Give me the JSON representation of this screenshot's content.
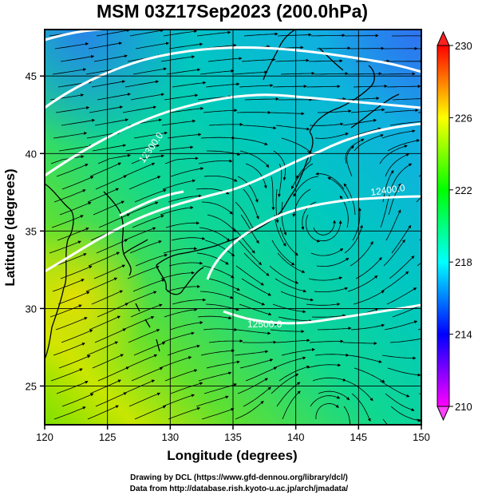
{
  "title": "MSM 03Z17Sep2023 (200.0hPa)",
  "xlabel": "Longitude (degrees)",
  "ylabel": "Latitude  (degrees)",
  "x_ticks": [
    120,
    125,
    130,
    135,
    140,
    145,
    150
  ],
  "y_ticks": [
    25,
    30,
    35,
    40,
    45
  ],
  "colorbar": {
    "ticks": [
      230,
      226,
      222,
      218,
      214,
      210
    ],
    "range": [
      210,
      230
    ],
    "colors": [
      "#ff00ff",
      "#8000ff",
      "#0000ff",
      "#0080ff",
      "#00ffff",
      "#00ff80",
      "#00ff00",
      "#80ff00",
      "#ffff00",
      "#ff8000",
      "#ff0000"
    ]
  },
  "contours": [
    {
      "label": "12500.0",
      "color": "#ffffff"
    },
    {
      "label": "12400.0",
      "color": "#ffffff"
    },
    {
      "label": "12300.0",
      "color": "#ffffff"
    }
  ],
  "credits": {
    "line1": "Drawing by DCL (https://www.gfd-dennou.org/library/dcl/)",
    "line2": "Data from http://database.rish.kyoto-u.ac.jp/arch/jmadata/"
  }
}
